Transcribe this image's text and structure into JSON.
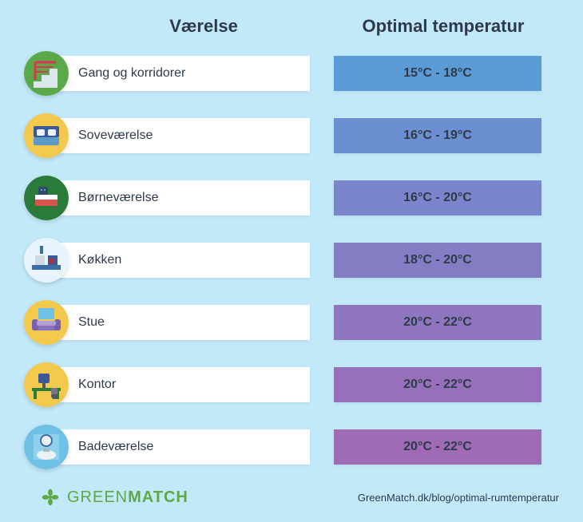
{
  "page": {
    "background_color": "#c2e9fa",
    "header_text_color": "#2e3a4a",
    "room_label_bg": "#ffffff",
    "room_label_text_color": "#2e3a4a",
    "temp_text_color": "#2e3a4a"
  },
  "headers": {
    "room": "Værelse",
    "temp": "Optimal temperatur"
  },
  "rows": [
    {
      "label": "Gang og korridorer",
      "temp": "15°C - 18°C",
      "temp_bg": "#5b9bd5",
      "icon": "stairs",
      "icon_bg": "#5aa847"
    },
    {
      "label": "Soveværelse",
      "temp": "16°C - 19°C",
      "temp_bg": "#6b8fd1",
      "icon": "bed",
      "icon_bg": "#f2c94c"
    },
    {
      "label": "Børneværelse",
      "temp": "16°C - 20°C",
      "temp_bg": "#7a85cb",
      "icon": "child-bed",
      "icon_bg": "#2a7a3a"
    },
    {
      "label": "Køkken",
      "temp": "18°C - 20°C",
      "temp_bg": "#847dc4",
      "icon": "kitchen",
      "icon_bg": "#e8f4fb"
    },
    {
      "label": "Stue",
      "temp": "20°C - 22°C",
      "temp_bg": "#8e76bf",
      "icon": "sofa",
      "icon_bg": "#f2c94c"
    },
    {
      "label": "Kontor",
      "temp": "20°C - 22°C",
      "temp_bg": "#9670ba",
      "icon": "desk",
      "icon_bg": "#f2c94c"
    },
    {
      "label": "Badeværelse",
      "temp": "20°C - 22°C",
      "temp_bg": "#9f6bb4",
      "icon": "bathroom",
      "icon_bg": "#6ec1e4"
    }
  ],
  "footer": {
    "logo_green": "GREEN",
    "logo_match": "MATCH",
    "logo_color": "#5fa843",
    "url": "GreenMatch.dk/blog/optimal-rumtemperatur"
  },
  "icons": {
    "stairs": "<svg viewBox='0 0 56 56'><circle cx='28' cy='28' r='28' fill='#5aa847'/><rect x='12' y='38' width='10' height='8' fill='#dce8ee'/><rect x='22' y='30' width='10' height='16' fill='#dce8ee'/><rect x='32' y='22' width='10' height='24' fill='#dce8ee'/><path d='M14 14 L14 36 M14 14 L40 14' stroke='#d35' stroke-width='3' fill='none'/><line x1='14' y1='20' x2='36' y2='20' stroke='#d35' stroke-width='2'/><line x1='14' y1='26' x2='30' y2='26' stroke='#d35' stroke-width='2'/></svg>",
    "bed": "<svg viewBox='0 0 56 56'><circle cx='28' cy='28' r='28' fill='#f2c94c'/><rect x='12' y='16' width='32' height='14' rx='2' fill='#3b5898'/><rect x='12' y='30' width='32' height='10' rx='2' fill='#5a9bc9'/><rect x='16' y='20' width='10' height='8' rx='2' fill='#eaf2f8'/><rect x='30' y='20' width='10' height='8' rx='2' fill='#eaf2f8'/></svg>",
    "child-bed": "<svg viewBox='0 0 56 56'><circle cx='28' cy='28' r='28' fill='#2a7a3a'/><rect x='14' y='28' width='28' height='10' rx='2' fill='#d9534f'/><rect x='14' y='24' width='28' height='6' fill='#fff'/><rect x='18' y='14' width='12' height='10' rx='2' fill='#2e4a66'/><circle cx='22' cy='18' r='1' fill='#6ec1e4'/><circle cx='26' cy='18' r='1' fill='#6ec1e4'/></svg>",
    "kitchen": "<svg viewBox='0 0 56 56'><circle cx='28' cy='28' r='28' fill='#e8f4fb'/><rect x='10' y='34' width='36' height='6' fill='#3b6fa3'/><rect x='14' y='22' width='12' height='12' fill='#cdd9e3'/><rect x='30' y='22' width='12' height='12' fill='#3b5898'/><rect x='32' y='26' width='6' height='6' fill='#b03030'/><rect x='20' y='10' width='4' height='10' fill='#3b6fa3'/></svg>",
    "sofa": "<svg viewBox='0 0 56 56'><circle cx='28' cy='28' r='28' fill='#f2c94c'/><rect x='18' y='10' width='20' height='14' fill='#6ec1e4'/><rect x='12' y='28' width='32' height='10' rx='3' fill='#8a6fbf'/><rect x='10' y='24' width='8' height='14' rx='3' fill='#7a5faf'/><rect x='38' y='24' width='8' height='14' rx='3' fill='#7a5faf'/><rect x='16' y='26' width='24' height='6' rx='2' fill='#b09fd6'/></svg>",
    "desk": "<svg viewBox='0 0 56 56'><circle cx='28' cy='28' r='28' fill='#f2c94c'/><rect x='10' y='32' width='36' height='4' fill='#2a7a3a'/><rect x='12' y='36' width='4' height='10' fill='#2a7a3a'/><rect x='40' y='36' width='4' height='10' fill='#2a7a3a'/><rect x='18' y='14' width='14' height='12' rx='2' fill='#3b5898'/><rect x='23' y='26' width='4' height='6' fill='#556'/><circle cx='38' cy='42' r='4' fill='#556'/><rect x='34' y='32' width='8' height='8' rx='2' fill='#778'/></svg>",
    "bathroom": "<svg viewBox='0 0 56 56'><circle cx='28' cy='28' r='28' fill='#6ec1e4'/><rect x='12' y='12' width='32' height='32' fill='#8fd0ea'/><circle cx='28' cy='20' r='7' fill='#eaf2f8' stroke='#3b6fa3' stroke-width='2'/><ellipse cx='28' cy='38' rx='12' ry='6' fill='#eaf2f8'/><rect x='24' y='30' width='8' height='4' fill='#b0b8bf'/></svg>"
  }
}
